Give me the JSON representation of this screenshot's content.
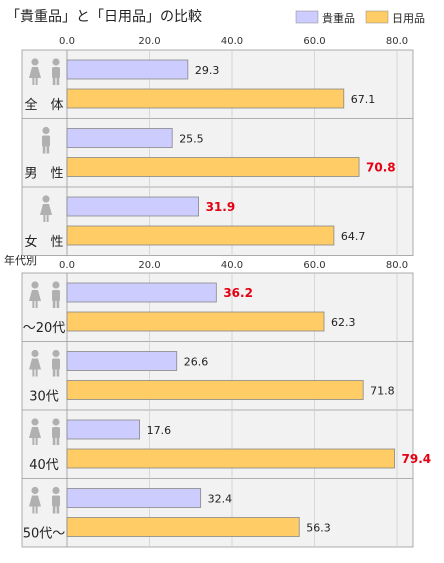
{
  "title": "「貴重品」と「日用品」の比較",
  "legend": [
    {
      "name": "貴重品",
      "color": "#ccccff"
    },
    {
      "name": "日用品",
      "color": "#ffcc66"
    }
  ],
  "section2_label": "年代別",
  "colors": {
    "highlight": "#e60012",
    "bar_stroke": "#888888",
    "row_bg": "#f2f2f2",
    "grid": "#cccccc"
  },
  "chart_data": [
    {
      "type": "bar",
      "orientation": "horizontal",
      "xlim": [
        0,
        80
      ],
      "tick_labels": [
        "0.0",
        "20.0",
        "40.0",
        "60.0",
        "80.0"
      ],
      "categories": [
        "全　体",
        "男　性",
        "女　性"
      ],
      "category_icons": [
        "man-and-woman-icon",
        "man-icon",
        "woman-icon"
      ],
      "series": [
        {
          "name": "貴重品",
          "values": [
            29.3,
            25.5,
            31.9
          ],
          "labels": [
            "29.3",
            "25.5",
            "31.9"
          ],
          "highlight": [
            false,
            false,
            true
          ]
        },
        {
          "name": "日用品",
          "values": [
            67.1,
            70.8,
            64.7
          ],
          "labels": [
            "67.1",
            "70.8",
            "64.7"
          ],
          "highlight": [
            false,
            true,
            false
          ]
        }
      ],
      "grid": true
    },
    {
      "type": "bar",
      "orientation": "horizontal",
      "xlim": [
        0,
        80
      ],
      "tick_labels": [
        "0.0",
        "20.0",
        "40.0",
        "60.0",
        "80.0"
      ],
      "categories": [
        "～20代",
        "30代",
        "40代",
        "50代～"
      ],
      "category_icons": [
        "man-and-woman-icon",
        "man-and-woman-icon",
        "man-and-woman-icon",
        "man-and-woman-icon"
      ],
      "series": [
        {
          "name": "貴重品",
          "values": [
            36.2,
            26.6,
            17.6,
            32.4
          ],
          "labels": [
            "36.2",
            "26.6",
            "17.6",
            "32.4"
          ],
          "highlight": [
            true,
            false,
            false,
            false
          ]
        },
        {
          "name": "日用品",
          "values": [
            62.3,
            71.8,
            79.4,
            56.3
          ],
          "labels": [
            "62.3",
            "71.8",
            "79.4",
            "56.3"
          ],
          "highlight": [
            false,
            false,
            true,
            false
          ]
        }
      ],
      "grid": true
    }
  ]
}
